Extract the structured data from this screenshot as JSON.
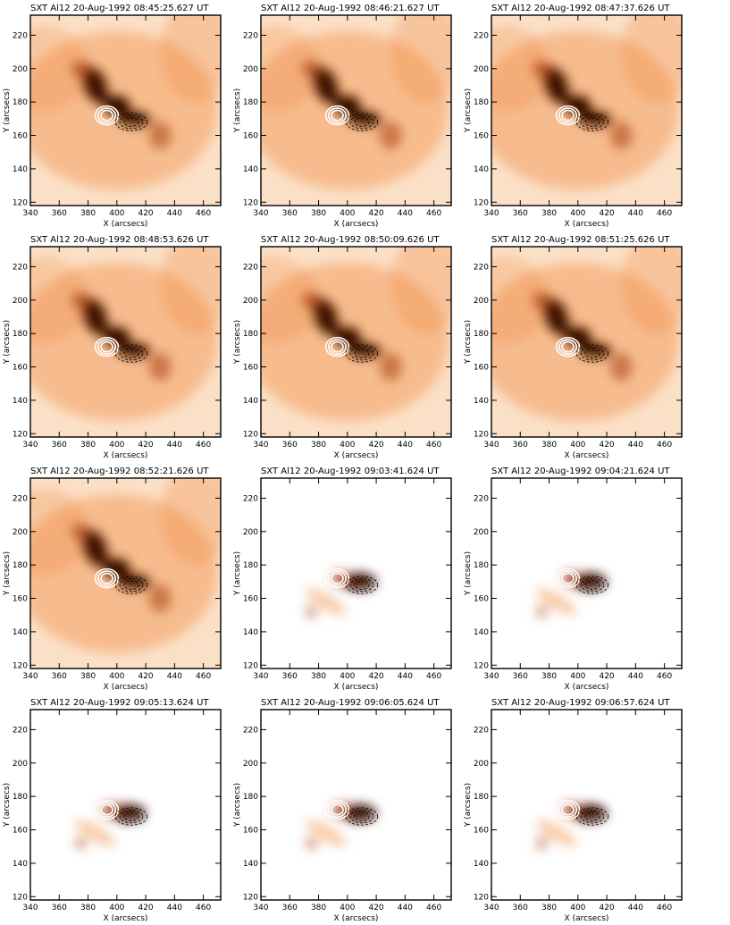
{
  "figure": {
    "x_label": "X (arcsecs)",
    "y_label": "Y (arcsecs)",
    "x_ticks": [
      "340",
      "360",
      "380",
      "400",
      "420",
      "440",
      "460"
    ],
    "y_ticks": [
      "120",
      "140",
      "160",
      "180",
      "200",
      "220"
    ],
    "colormap": {
      "low": "#ffffff",
      "mid": "#f08a3c",
      "high": "#3a0a00"
    },
    "contour_colors": {
      "white": "#ffffff",
      "black": "#000000"
    },
    "panels": [
      {
        "title": "SXT Al12   20-Aug-1992 08:45:25.627 UT"
      },
      {
        "title": "SXT Al12   20-Aug-1992 08:46:21.627 UT"
      },
      {
        "title": "SXT Al12   20-Aug-1992 08:47:37.626 UT"
      },
      {
        "title": "SXT Al12   20-Aug-1992 08:48:53.626 UT"
      },
      {
        "title": "SXT Al12   20-Aug-1992 08:50:09.626 UT"
      },
      {
        "title": "SXT Al12   20-Aug-1992 08:51:25.626 UT"
      },
      {
        "title": "SXT Al12   20-Aug-1992 08:52:21.626 UT"
      },
      {
        "title": "SXT Al12   20-Aug-1992 09:03:41.624 UT"
      },
      {
        "title": "SXT Al12   20-Aug-1992 09:04:21.624 UT"
      },
      {
        "title": "SXT Al12   20-Aug-1992 09:05:13.624 UT"
      },
      {
        "title": "SXT Al12   20-Aug-1992 09:06:05.624 UT"
      },
      {
        "title": "SXT Al12   20-Aug-1992 09:06:57.624 UT"
      }
    ]
  }
}
